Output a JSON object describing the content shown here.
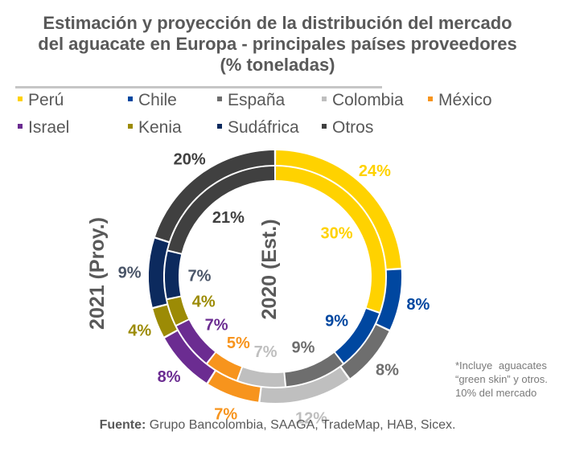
{
  "chart_data": {
    "type": "pie",
    "subtype": "double-donut",
    "title": "Estimación y proyección de la distribución del mercado del aguacate en Europa - principales países proveedores (% toneladas)",
    "categories": [
      "Perú",
      "Chile",
      "España",
      "Colombia",
      "México",
      "Israel",
      "Kenia",
      "Sudáfrica",
      "Otros"
    ],
    "colors": [
      "#FFD200",
      "#0047A0",
      "#6E6E6E",
      "#BFBFBF",
      "#F7941D",
      "#6B2C91",
      "#9C8B05",
      "#0C2A5E",
      "#404040"
    ],
    "label_colors": [
      "#FFD200",
      "#0047A0",
      "#6E6E6E",
      "#BFBFBF",
      "#F7941D",
      "#6B2C91",
      "#9C8B05",
      "#4A5568",
      "#404040"
    ],
    "series": [
      {
        "name": "2021 (Proy.)",
        "ring": "outer",
        "values": [
          24,
          8,
          8,
          12,
          7,
          8,
          4,
          9,
          20
        ],
        "labels": [
          "24%",
          "8%",
          "8%",
          "12%",
          "7%",
          "8%",
          "4%",
          "9%",
          "20%"
        ]
      },
      {
        "name": "2020 (Est.)",
        "ring": "inner",
        "values": [
          30,
          9,
          9,
          7,
          5,
          7,
          4,
          7,
          21
        ],
        "labels": [
          "30%",
          "9%",
          "9%",
          "7%",
          "5%",
          "7%",
          "4%",
          "7%",
          "21%"
        ]
      }
    ],
    "legend_position": "top"
  },
  "title_lines": [
    "Estimación y proyección de la distribución del mercado",
    "del aguacate en Europa - principales países proveedores",
    "(% toneladas)"
  ],
  "ring_labels": {
    "outer": "2021 (Proy.)",
    "inner": "2020 (Est.)"
  },
  "note": [
    "*Incluye  aguacates",
    "“green skin” y otros.",
    "10% del mercado"
  ],
  "source": {
    "label": "Fuente:",
    "text": " Grupo Bancolombia, SAAGA, TradeMap, HAB, Sicex."
  }
}
